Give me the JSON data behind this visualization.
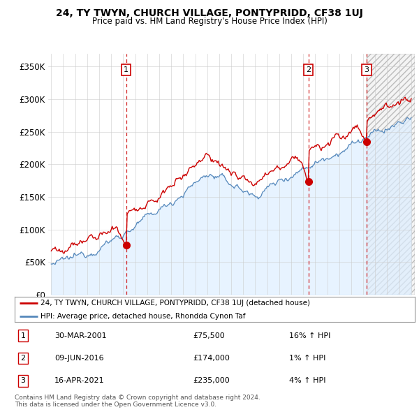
{
  "title": "24, TY TWYN, CHURCH VILLAGE, PONTYPRIDD, CF38 1UJ",
  "subtitle": "Price paid vs. HM Land Registry's House Price Index (HPI)",
  "xlim": [
    1994.75,
    2025.3
  ],
  "ylim": [
    0,
    370000
  ],
  "yticks": [
    0,
    50000,
    100000,
    150000,
    200000,
    250000,
    300000,
    350000
  ],
  "ytick_labels": [
    "£0",
    "£50K",
    "£100K",
    "£150K",
    "£200K",
    "£250K",
    "£300K",
    "£350K"
  ],
  "xticks": [
    1995,
    1996,
    1997,
    1998,
    1999,
    2000,
    2001,
    2002,
    2003,
    2004,
    2005,
    2006,
    2007,
    2008,
    2009,
    2010,
    2011,
    2012,
    2013,
    2014,
    2015,
    2016,
    2017,
    2018,
    2019,
    2020,
    2021,
    2022,
    2023,
    2024,
    2025
  ],
  "sales": [
    {
      "year": 2001.24,
      "price": 75500,
      "label": "1"
    },
    {
      "year": 2016.44,
      "price": 174000,
      "label": "2"
    },
    {
      "year": 2021.29,
      "price": 235000,
      "label": "3"
    }
  ],
  "sale_dashed_lines": [
    2001.24,
    2016.44,
    2021.29
  ],
  "last_sale_year": 2021.29,
  "legend_red": "24, TY TWYN, CHURCH VILLAGE, PONTYPRIDD, CF38 1UJ (detached house)",
  "legend_blue": "HPI: Average price, detached house, Rhondda Cynon Taf",
  "table_rows": [
    {
      "num": "1",
      "date": "30-MAR-2001",
      "price": "£75,500",
      "hpi": "16% ↑ HPI"
    },
    {
      "num": "2",
      "date": "09-JUN-2016",
      "price": "£174,000",
      "hpi": "1% ↑ HPI"
    },
    {
      "num": "3",
      "date": "16-APR-2021",
      "price": "£235,000",
      "hpi": "4% ↑ HPI"
    }
  ],
  "footer": "Contains HM Land Registry data © Crown copyright and database right 2024.\nThis data is licensed under the Open Government Licence v3.0.",
  "red_color": "#cc0000",
  "blue_color": "#5588bb",
  "blue_fill_color": "#ddeeff",
  "dashed_color": "#cc0000",
  "background_color": "#ffffff",
  "grid_color": "#cccccc",
  "hatch_color": "#cccccc"
}
